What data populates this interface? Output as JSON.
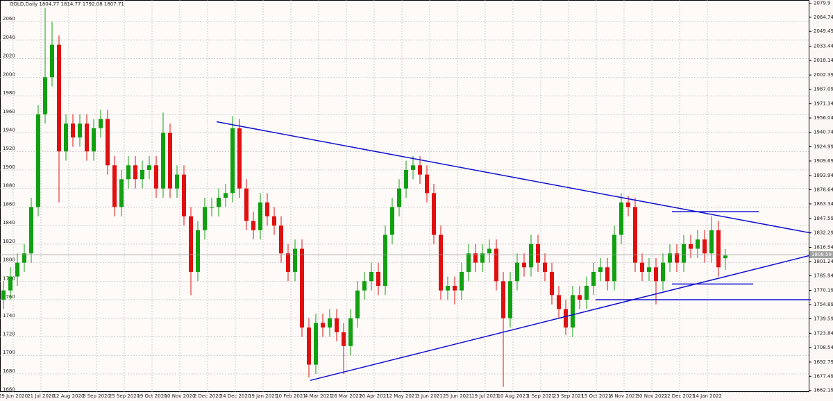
{
  "chart_data": {
    "type": "candlestick",
    "title": "GOLD,Daily  1804.77 1814.77 1792.08 1807.71",
    "ylim": [
      1660.5,
      2083.3
    ],
    "yticks": [
      1660,
      1680,
      1700,
      1720,
      1740,
      1760,
      1780,
      1800,
      1820,
      1840,
      1860,
      1880,
      1900,
      1920,
      1940,
      1960,
      1980,
      2000,
      2020,
      2040,
      2060
    ],
    "y2ticks": [
      2079.9,
      2064.74,
      2049.49,
      2033.44,
      2018.14,
      2002.39,
      1987.09,
      1971.34,
      1956.04,
      1940.74,
      1924.99,
      1909.69,
      1893.94,
      1878.64,
      1863.34,
      1847.59,
      1832.29,
      1816.54,
      1801.24,
      1785.94,
      1770.19,
      1754.89,
      1739.59,
      1723.84,
      1708.54,
      1692.79,
      1677.49,
      1662.19
    ],
    "x_labels": [
      "29 Jun 2020",
      "21 Jul 2020",
      "12 Aug 2020",
      "3 Sep 2020",
      "25 Sep 2020",
      "19 Oct 2020",
      "10 Nov 2020",
      "2 Dec 2020",
      "24 Dec 2020",
      "19 Jan 2021",
      "10 Feb 2021",
      "4 Mar 2021",
      "26 Mar 2021",
      "20 Apr 2021",
      "12 May 2021",
      "3 Jun 2021",
      "25 Jun 2021",
      "19 Jul 2021",
      "10 Aug 2021",
      "1 Sep 2021",
      "23 Sep 2021",
      "15 Oct 2021",
      "8 Nov 2021",
      "30 Nov 2021",
      "22 Dec 2021",
      "14 Jan 2022"
    ],
    "grid": true,
    "up_color": "#10a010",
    "down_color": "#e01010",
    "line_color": "#1010d0",
    "current_price": 1808.59,
    "open": [
      1760,
      1770,
      1785,
      1800,
      1810,
      1860,
      1960,
      2000,
      2035,
      1920,
      1950,
      1935,
      1950,
      1920,
      1945,
      1955,
      1905,
      1860,
      1890,
      1905,
      1890,
      1900,
      1905,
      1880,
      1940,
      1880,
      1895,
      1850,
      1790,
      1835,
      1860,
      1860,
      1870,
      1875,
      1945,
      1880,
      1845,
      1835,
      1865,
      1850,
      1840,
      1810,
      1790,
      1815,
      1730,
      1690,
      1735,
      1730,
      1740,
      1725,
      1710,
      1740,
      1770,
      1780,
      1790,
      1775,
      1830,
      1860,
      1880,
      1900,
      1905,
      1895,
      1875,
      1830,
      1770,
      1775,
      1770,
      1790,
      1810,
      1800,
      1810,
      1815,
      1780,
      1740,
      1780,
      1800,
      1795,
      1820,
      1800,
      1790,
      1765,
      1750,
      1730,
      1765,
      1760,
      1775,
      1790,
      1795,
      1780,
      1830,
      1865,
      1860,
      1800,
      1790,
      1795,
      1780,
      1800,
      1810,
      1800,
      1820,
      1815,
      1825,
      1810,
      1835,
      1804.77
    ],
    "high": [
      1780,
      1795,
      1810,
      1820,
      1870,
      1970,
      2075,
      2060,
      2045,
      1960,
      1960,
      1960,
      1960,
      1955,
      1965,
      1965,
      1915,
      1900,
      1915,
      1915,
      1910,
      1915,
      1915,
      1962,
      1950,
      1905,
      1905,
      1860,
      1845,
      1870,
      1870,
      1880,
      1885,
      1958,
      1955,
      1890,
      1855,
      1875,
      1875,
      1860,
      1850,
      1820,
      1825,
      1825,
      1740,
      1745,
      1745,
      1750,
      1750,
      1735,
      1750,
      1780,
      1790,
      1800,
      1800,
      1840,
      1870,
      1890,
      1910,
      1915,
      1915,
      1905,
      1885,
      1840,
      1785,
      1785,
      1800,
      1820,
      1820,
      1820,
      1825,
      1825,
      1790,
      1790,
      1810,
      1810,
      1830,
      1830,
      1810,
      1800,
      1775,
      1760,
      1775,
      1775,
      1785,
      1800,
      1805,
      1805,
      1840,
      1875,
      1872,
      1870,
      1810,
      1805,
      1805,
      1810,
      1820,
      1820,
      1830,
      1830,
      1835,
      1835,
      1850,
      1845,
      1814.77
    ],
    "low": [
      1750,
      1760,
      1775,
      1790,
      1800,
      1850,
      1950,
      1990,
      1865,
      1910,
      1925,
      1925,
      1910,
      1910,
      1935,
      1895,
      1850,
      1850,
      1880,
      1880,
      1880,
      1890,
      1870,
      1870,
      1870,
      1870,
      1840,
      1765,
      1780,
      1825,
      1850,
      1850,
      1860,
      1865,
      1870,
      1835,
      1825,
      1825,
      1840,
      1830,
      1800,
      1780,
      1780,
      1720,
      1676,
      1680,
      1720,
      1720,
      1715,
      1680,
      1700,
      1730,
      1760,
      1770,
      1765,
      1765,
      1820,
      1850,
      1870,
      1890,
      1885,
      1865,
      1820,
      1760,
      1760,
      1755,
      1760,
      1780,
      1790,
      1790,
      1800,
      1770,
      1666,
      1730,
      1770,
      1785,
      1785,
      1790,
      1780,
      1755,
      1740,
      1722,
      1720,
      1750,
      1750,
      1765,
      1780,
      1770,
      1770,
      1820,
      1850,
      1790,
      1780,
      1780,
      1755,
      1770,
      1790,
      1790,
      1790,
      1805,
      1805,
      1800,
      1800,
      1785,
      1792.08
    ],
    "close": [
      1770,
      1785,
      1800,
      1810,
      1860,
      1960,
      2000,
      2035,
      1920,
      1950,
      1935,
      1950,
      1920,
      1945,
      1955,
      1905,
      1860,
      1890,
      1905,
      1890,
      1900,
      1905,
      1880,
      1940,
      1880,
      1895,
      1850,
      1790,
      1835,
      1860,
      1860,
      1870,
      1875,
      1945,
      1880,
      1845,
      1835,
      1865,
      1850,
      1840,
      1810,
      1790,
      1815,
      1730,
      1690,
      1735,
      1730,
      1740,
      1725,
      1710,
      1740,
      1770,
      1780,
      1790,
      1775,
      1830,
      1860,
      1880,
      1900,
      1905,
      1895,
      1875,
      1830,
      1770,
      1775,
      1770,
      1790,
      1810,
      1800,
      1810,
      1815,
      1780,
      1740,
      1780,
      1800,
      1795,
      1820,
      1800,
      1790,
      1765,
      1750,
      1730,
      1765,
      1760,
      1775,
      1790,
      1795,
      1780,
      1830,
      1865,
      1860,
      1800,
      1790,
      1795,
      1780,
      1800,
      1810,
      1800,
      1820,
      1815,
      1825,
      1810,
      1835,
      1795,
      1807.71
    ],
    "trendlines": [
      [
        1952,
        1832
      ],
      [
        1673,
        1808
      ],
      [
        1855,
        1855
      ],
      [
        1777,
        1777
      ],
      [
        1760,
        1760
      ]
    ]
  }
}
